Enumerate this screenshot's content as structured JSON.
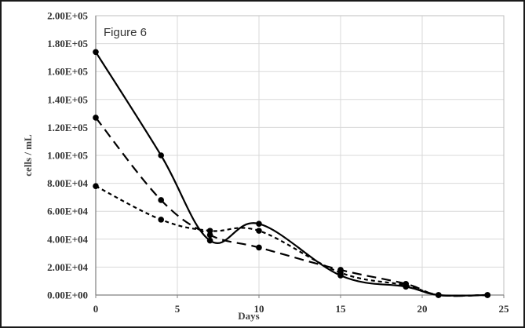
{
  "chart_data": {
    "type": "line",
    "title": "Figure 6",
    "xlabel": "Days",
    "ylabel": "cells / mL",
    "xlim": [
      0,
      25
    ],
    "ylim": [
      0,
      200000
    ],
    "x_ticks": [
      0,
      5,
      10,
      15,
      20,
      25
    ],
    "y_ticks": [
      0,
      20000,
      40000,
      60000,
      80000,
      100000,
      120000,
      140000,
      160000,
      180000,
      200000
    ],
    "x_tick_labels": [
      "0",
      "5",
      "10",
      "15",
      "20",
      "25"
    ],
    "y_tick_labels": [
      "0.00E+00",
      "2.00E+04",
      "4.00E+04",
      "6.00E+04",
      "8.00E+04",
      "1.00E+05",
      "1.20E+05",
      "1.40E+05",
      "1.60E+05",
      "1.80E+05",
      "2.00E+05"
    ],
    "grid": true,
    "line_color": "#000000",
    "grid_color": "#d9d9d9",
    "series": [
      {
        "style": "solid",
        "points": [
          {
            "x": 0,
            "y": 174000
          },
          {
            "x": 4,
            "y": 100000
          },
          {
            "x": 7,
            "y": 39000
          },
          {
            "x": 10,
            "y": 51000
          },
          {
            "x": 15,
            "y": 14000
          },
          {
            "x": 19,
            "y": 6000
          },
          {
            "x": 21,
            "y": 0
          },
          {
            "x": 24,
            "y": 0
          }
        ]
      },
      {
        "style": "long-dash",
        "points": [
          {
            "x": 0,
            "y": 127000
          },
          {
            "x": 4,
            "y": 68000
          },
          {
            "x": 7,
            "y": 43000
          },
          {
            "x": 10,
            "y": 34000
          },
          {
            "x": 15,
            "y": 18000
          },
          {
            "x": 19,
            "y": 8000
          },
          {
            "x": 21,
            "y": 0
          },
          {
            "x": 24,
            "y": 0
          }
        ]
      },
      {
        "style": "short-dash",
        "points": [
          {
            "x": 0,
            "y": 78000
          },
          {
            "x": 4,
            "y": 54000
          },
          {
            "x": 7,
            "y": 46000
          },
          {
            "x": 10,
            "y": 46000
          },
          {
            "x": 15,
            "y": 16000
          },
          {
            "x": 19,
            "y": 7000
          },
          {
            "x": 21,
            "y": 0
          },
          {
            "x": 24,
            "y": 0
          }
        ]
      }
    ]
  }
}
